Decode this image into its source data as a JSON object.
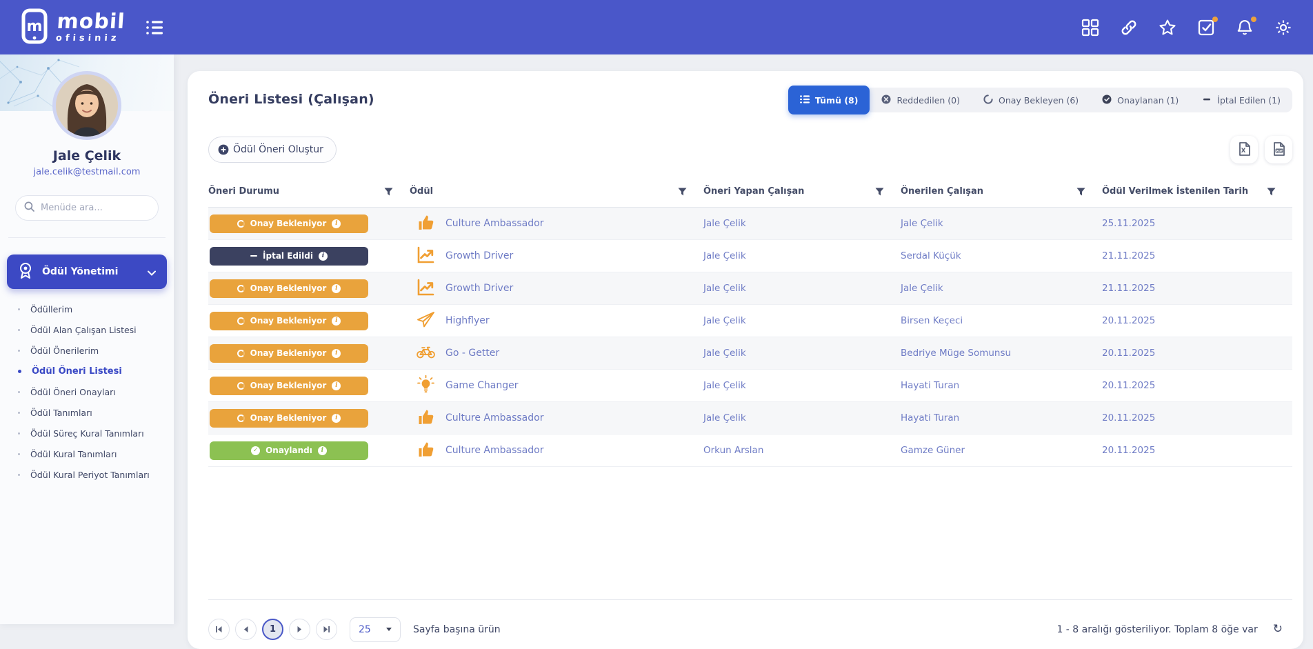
{
  "navbar": {
    "logo_line1": "mobil",
    "logo_line2": "ofisiniz",
    "icons": [
      {
        "name": "apps-grid-icon",
        "badge": false
      },
      {
        "name": "link-icon",
        "badge": false
      },
      {
        "name": "star-icon",
        "badge": false
      },
      {
        "name": "tasks-icon",
        "badge": true
      },
      {
        "name": "bell-icon",
        "badge": true
      },
      {
        "name": "gear-icon",
        "badge": false
      }
    ],
    "badge_color": "#eda23c"
  },
  "sidebar": {
    "profile": {
      "name": "Jale Çelik",
      "email": "jale.celik@testmail.com"
    },
    "search_placeholder": "Menüde ara...",
    "group": {
      "label": "Ödül Yönetimi"
    },
    "items": [
      {
        "label": "Ödüllerim",
        "active": false
      },
      {
        "label": "Ödül Alan Çalışan Listesi",
        "active": false
      },
      {
        "label": "Ödül Önerilerim",
        "active": false
      },
      {
        "label": "Ödül Öneri Listesi",
        "active": true
      },
      {
        "label": "Ödül Öneri Onayları",
        "active": false
      },
      {
        "label": "Ödül Tanımları",
        "active": false
      },
      {
        "label": "Ödül Süreç Kural Tanımları",
        "active": false
      },
      {
        "label": "Ödül Kural Tanımları",
        "active": false
      },
      {
        "label": "Ödül Kural Periyot Tanımları",
        "active": false
      }
    ]
  },
  "main": {
    "title": "Öneri Listesi (Çalışan)",
    "tabs": [
      {
        "label": "Tümü (8)",
        "icon": "list-icon",
        "active": true
      },
      {
        "label": "Reddedilen (0)",
        "icon": "x-circle-icon",
        "active": false
      },
      {
        "label": "Onay Bekleyen (6)",
        "icon": "pending-circle-icon",
        "active": false
      },
      {
        "label": "Onaylanan (1)",
        "icon": "check-circle-icon",
        "active": false
      },
      {
        "label": "İptal Edilen (1)",
        "icon": "minus-icon",
        "active": false
      }
    ],
    "create_button": "Ödül Öneri Oluştur",
    "export_buttons": [
      {
        "name": "export-excel-button",
        "icon": "excel-file-icon"
      },
      {
        "name": "export-pdf-button",
        "icon": "pdf-file-icon"
      }
    ],
    "table": {
      "columns": [
        "Öneri Durumu",
        "Ödül",
        "Öneri Yapan Çalışan",
        "Önerilen Çalışan",
        "Ödül Verilmek İstenilen Tarih"
      ],
      "rows": [
        {
          "status": "Onay Bekleniyor",
          "status_type": "pending",
          "reward_icon": "thumbs-up-icon",
          "reward": "Culture Ambassador",
          "proposer": "Jale Çelik",
          "proposed": "Jale Çelik",
          "date": "25.11.2025"
        },
        {
          "status": "İptal Edildi",
          "status_type": "cancelled",
          "reward_icon": "chart-up-icon",
          "reward": "Growth Driver",
          "proposer": "Jale Çelik",
          "proposed": "Serdal Küçük",
          "date": "21.11.2025"
        },
        {
          "status": "Onay Bekleniyor",
          "status_type": "pending",
          "reward_icon": "chart-up-icon",
          "reward": "Growth Driver",
          "proposer": "Jale Çelik",
          "proposed": "Jale Çelik",
          "date": "21.11.2025"
        },
        {
          "status": "Onay Bekleniyor",
          "status_type": "pending",
          "reward_icon": "paper-plane-icon",
          "reward": "Highflyer",
          "proposer": "Jale Çelik",
          "proposed": "Birsen Keçeci",
          "date": "20.11.2025"
        },
        {
          "status": "Onay Bekleniyor",
          "status_type": "pending",
          "reward_icon": "bicycle-icon",
          "reward": "Go - Getter",
          "proposer": "Jale Çelik",
          "proposed": "Bedriye Müge Somunsu",
          "date": "20.11.2025"
        },
        {
          "status": "Onay Bekleniyor",
          "status_type": "pending",
          "reward_icon": "lightbulb-icon",
          "reward": "Game Changer",
          "proposer": "Jale Çelik",
          "proposed": "Hayati Turan",
          "date": "20.11.2025"
        },
        {
          "status": "Onay Bekleniyor",
          "status_type": "pending",
          "reward_icon": "thumbs-up-icon",
          "reward": "Culture Ambassador",
          "proposer": "Jale Çelik",
          "proposed": "Hayati Turan",
          "date": "20.11.2025"
        },
        {
          "status": "Onaylandı",
          "status_type": "approved",
          "reward_icon": "thumbs-up-icon",
          "reward": "Culture Ambassador",
          "proposer": "Orkun Arslan",
          "proposed": "Gamze Güner",
          "date": "20.11.2025"
        }
      ]
    },
    "pagination": {
      "current_page": "1",
      "page_size": "25",
      "per_page_label": "Sayfa başına ürün",
      "summary": "1 - 8 aralığı gösteriliyor. Toplam 8 öğe var"
    }
  },
  "colors": {
    "navbar": "#4a57c9",
    "accent_blue": "#2b63d6",
    "sidebar_group": "#3c49c4",
    "pending": "#e9a33c",
    "cancelled": "#3b4160",
    "approved": "#8cc152",
    "reward_orange": "#f09f33",
    "link_text": "#707dc6"
  }
}
